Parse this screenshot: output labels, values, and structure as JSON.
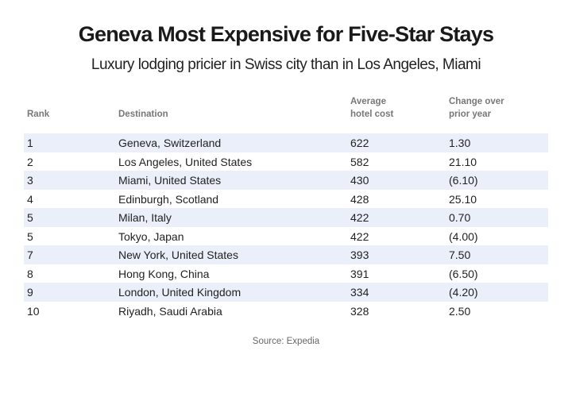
{
  "title": "Geneva Most Expensive for Five-Star Stays",
  "subtitle": "Luxury lodging pricier in Swiss city than in Los Angeles, Miami",
  "source": "Source: Expedia",
  "band_color": "#eaeffa",
  "chart_data": {
    "type": "table",
    "title": "Geneva Most Expensive for Five-Star Stays",
    "subtitle": "Luxury lodging pricier in Swiss city than in Los Angeles, Miami",
    "columns": [
      "Rank",
      "Destination",
      "Average hotel cost",
      "Change over prior year"
    ],
    "headers": {
      "rank": "Rank",
      "destination": "Destination",
      "cost_line1": "Average",
      "cost_line2": "hotel cost",
      "change_line1": "Change over",
      "change_line2": "prior year"
    },
    "rows": [
      {
        "rank": "1",
        "destination": "Geneva, Switzerland",
        "cost": "622",
        "change": "1.30"
      },
      {
        "rank": "2",
        "destination": "Los Angeles, United States",
        "cost": "582",
        "change": "21.10"
      },
      {
        "rank": "3",
        "destination": "Miami, United States",
        "cost": "430",
        "change": "(6.10)"
      },
      {
        "rank": "4",
        "destination": "Edinburgh, Scotland",
        "cost": "428",
        "change": "25.10"
      },
      {
        "rank": "5",
        "destination": "Milan, Italy",
        "cost": "422",
        "change": "0.70"
      },
      {
        "rank": "5",
        "destination": "Tokyo, Japan",
        "cost": "422",
        "change": "(4.00)"
      },
      {
        "rank": "7",
        "destination": "New York, United States",
        "cost": "393",
        "change": "7.50"
      },
      {
        "rank": "8",
        "destination": "Hong Kong, China",
        "cost": "391",
        "change": "(6.50)"
      },
      {
        "rank": "9",
        "destination": "London, United Kingdom",
        "cost": "334",
        "change": "(4.20)"
      },
      {
        "rank": "10",
        "destination": "Riyadh, Saudi Arabia",
        "cost": "328",
        "change": "2.50"
      }
    ]
  }
}
